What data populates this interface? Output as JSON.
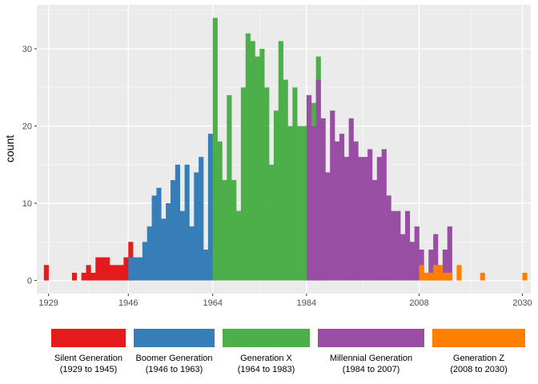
{
  "chart_data": {
    "type": "bar",
    "ylabel": "count",
    "xlabel": "",
    "xlim": [
      1926.5,
      2031.8
    ],
    "ylim": [
      -1.7,
      35.7
    ],
    "x_ticks": [
      1929,
      1946,
      1964,
      1984,
      2008,
      2030
    ],
    "y_ticks": [
      0,
      10,
      20,
      30
    ],
    "grid": true,
    "legend_position": "bottom",
    "series": [
      {
        "name_line1": "Silent Generation",
        "name_line2": "(1929 to 1945)",
        "color": "#E41A1C",
        "start_year": 1929,
        "values": [
          2,
          0,
          0,
          0,
          0,
          0,
          1,
          0,
          1,
          2,
          1,
          3,
          3,
          3,
          2,
          2,
          2,
          3,
          5
        ]
      },
      {
        "name_line1": "Boomer Generation",
        "name_line2": "(1946 to 1963)",
        "color": "#377EB8",
        "start_year": 1947,
        "values": [
          3,
          3,
          3,
          5,
          7,
          11,
          12,
          8,
          10,
          13,
          15,
          9,
          15,
          7,
          14,
          16,
          4,
          19,
          17
        ]
      },
      {
        "name_line1": "Generation X",
        "name_line2": "(1964 to 1983)",
        "color": "#4DAF4A",
        "start_year": 1965,
        "values": [
          34,
          18,
          13,
          24,
          13,
          9,
          25,
          32,
          31,
          29,
          30,
          25,
          15,
          22,
          31,
          26,
          20,
          25,
          20,
          20,
          24,
          23,
          29,
          21
        ]
      },
      {
        "name_line1": "Millennial Generation",
        "name_line2": "(1984 to 2007)",
        "color": "#984EA3",
        "start_year": 1985,
        "values": [
          24,
          20,
          26,
          21,
          14,
          22,
          18,
          19,
          16,
          21,
          18,
          16,
          16,
          17,
          13,
          16,
          17,
          11,
          9,
          9,
          6,
          9,
          5,
          7,
          4,
          1,
          4,
          6,
          1,
          4,
          7
        ]
      },
      {
        "name_line1": "Generation Z",
        "name_line2": "(2008 to 2030)",
        "color": "#FF7F00",
        "start_year": 2009,
        "values": [
          2,
          1,
          1,
          2,
          2,
          1,
          1,
          0,
          2,
          0,
          0,
          0,
          0,
          1,
          0,
          0,
          0,
          0,
          0,
          0,
          0,
          0,
          1
        ]
      }
    ]
  }
}
